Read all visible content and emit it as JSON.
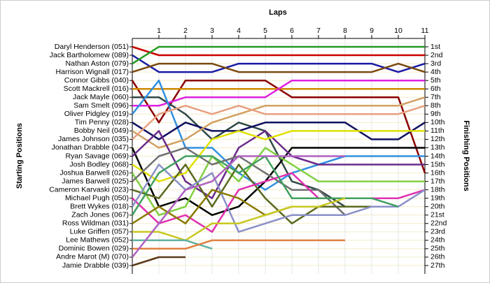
{
  "chart_data": {
    "type": "bump",
    "title": "Laps",
    "y_label": "Starting Positions",
    "y2_label": "Finishing Positions",
    "x": [
      0,
      1,
      2,
      3,
      4,
      5,
      6,
      7,
      8,
      9,
      10,
      11
    ],
    "xlim": [
      0,
      11
    ],
    "xticks": [
      1,
      2,
      3,
      4,
      5,
      6,
      7,
      8,
      9,
      10,
      11
    ],
    "ylim": [
      1,
      27
    ],
    "y_inverted": true,
    "grid": true,
    "y2ticks": [
      {
        "value": 1,
        "label": "1st"
      },
      {
        "value": 2,
        "label": "2nd"
      },
      {
        "value": 3,
        "label": "3rd"
      },
      {
        "value": 4,
        "label": "4th"
      },
      {
        "value": 5,
        "label": "5th"
      },
      {
        "value": 6,
        "label": "6th"
      },
      {
        "value": 7,
        "label": "7th"
      },
      {
        "value": 8,
        "label": "8th"
      },
      {
        "value": 9,
        "label": "9th"
      },
      {
        "value": 10,
        "label": "10th"
      },
      {
        "value": 11,
        "label": "11th"
      },
      {
        "value": 12,
        "label": "12th"
      },
      {
        "value": 13,
        "label": "13th"
      },
      {
        "value": 14,
        "label": "14th"
      },
      {
        "value": 15,
        "label": "15th"
      },
      {
        "value": 16,
        "label": "16th"
      },
      {
        "value": 17,
        "label": "17th"
      },
      {
        "value": 18,
        "label": "18th"
      },
      {
        "value": 19,
        "label": "19th"
      },
      {
        "value": 20,
        "label": "20th"
      },
      {
        "value": 21,
        "label": "21st"
      },
      {
        "value": 22,
        "label": "22nd"
      },
      {
        "value": 23,
        "label": "23rd"
      },
      {
        "value": 24,
        "label": "24th"
      },
      {
        "value": 25,
        "label": "25th"
      },
      {
        "value": 26,
        "label": "26th"
      },
      {
        "value": 27,
        "label": "27th"
      }
    ],
    "series": [
      {
        "name": "Daryl Henderson (051)",
        "color": "#cc0000",
        "values": [
          1,
          2,
          2,
          2,
          2,
          2,
          2,
          2,
          2,
          2,
          2,
          2
        ]
      },
      {
        "name": "Jack Bartholomew (089)",
        "color": "#1a1aa6",
        "values": [
          2,
          4,
          4,
          4,
          3,
          3,
          3,
          3,
          3,
          3,
          4,
          3
        ]
      },
      {
        "name": "Nathan Aston (079)",
        "color": "#229a22",
        "values": [
          3,
          1,
          1,
          1,
          1,
          1,
          1,
          1,
          1,
          1,
          1,
          1
        ]
      },
      {
        "name": "Harrison Wignall (017)",
        "color": "#7a4a10",
        "values": [
          4,
          3,
          3,
          3,
          4,
          4,
          4,
          4,
          4,
          4,
          3,
          4
        ]
      },
      {
        "name": "Connor Gibbs (040)",
        "color": "#8b0000",
        "values": [
          5,
          10,
          5,
          5,
          5,
          5,
          7,
          7,
          7,
          7,
          7,
          16
        ]
      },
      {
        "name": "Scott Mackrell (016)",
        "color": "#d08a00",
        "values": [
          6,
          6,
          6,
          6,
          6,
          6,
          6,
          6,
          6,
          6,
          6,
          6
        ]
      },
      {
        "name": "Jack Mayle (060)",
        "color": "#304848",
        "values": [
          7,
          7,
          9,
          12,
          10,
          11,
          17,
          18,
          20,
          null,
          null,
          null
        ]
      },
      {
        "name": "Sam Smelt (096)",
        "color": "#e020e0",
        "values": [
          8,
          8,
          7,
          7,
          7,
          7,
          5,
          5,
          5,
          5,
          5,
          5
        ]
      },
      {
        "name": "Oliver Pidgley (019)",
        "color": "#3090e0",
        "values": [
          9,
          5,
          13,
          13,
          16,
          18,
          16,
          15,
          14,
          14,
          14,
          14
        ]
      },
      {
        "name": "Tim Penny (028)",
        "color": "#101060",
        "values": [
          10,
          12,
          10,
          11,
          11,
          10,
          10,
          10,
          10,
          12,
          12,
          10
        ]
      },
      {
        "name": "Bobby Neil (049)",
        "color": "#d2a060",
        "values": [
          11,
          13,
          12,
          10,
          9,
          8,
          8,
          8,
          8,
          8,
          8,
          7
        ]
      },
      {
        "name": "James Johnson (035)",
        "color": "#e8a080",
        "values": [
          12,
          9,
          8,
          9,
          8,
          9,
          9,
          9,
          9,
          9,
          9,
          8
        ]
      },
      {
        "name": "Jonathan Drabble (047)",
        "color": "#000000",
        "values": [
          13,
          20,
          19,
          21,
          20,
          17,
          13,
          13,
          13,
          13,
          13,
          13
        ]
      },
      {
        "name": "Ryan Savage (069)",
        "color": "#6a2a8a",
        "values": [
          14,
          11,
          17,
          19,
          13,
          11,
          14,
          15,
          15,
          15,
          15,
          15
        ]
      },
      {
        "name": "Josh Bodley (068)",
        "color": "#e0e000",
        "values": [
          15,
          17,
          16,
          12,
          11,
          12,
          11,
          11,
          11,
          11,
          11,
          11
        ]
      },
      {
        "name": "Joshua Barwell (026)",
        "color": "#80d040",
        "values": [
          16,
          21,
          20,
          14,
          17,
          13,
          15,
          17,
          17,
          17,
          17,
          17
        ]
      },
      {
        "name": "James Barwell (025)",
        "color": "#707070",
        "values": [
          17,
          14,
          13,
          15,
          14,
          16,
          18,
          18,
          21,
          null,
          null,
          null
        ]
      },
      {
        "name": "Cameron Karvaski (023)",
        "color": "#5a6a20",
        "values": [
          18,
          19,
          15,
          20,
          15,
          19,
          22,
          20,
          20,
          20,
          null,
          null
        ]
      },
      {
        "name": "Michael Pugh (050)",
        "color": "#e030b0",
        "values": [
          19,
          22,
          21,
          23,
          18,
          17,
          16,
          19,
          19,
          19,
          19,
          18
        ]
      },
      {
        "name": "Brett Wykes (018)",
        "color": "#8a90c8",
        "values": [
          20,
          15,
          18,
          16,
          23,
          22,
          21,
          21,
          21,
          20,
          20,
          18
        ]
      },
      {
        "name": "Zach Jones (067)",
        "color": "#40a060",
        "values": [
          21,
          16,
          14,
          14,
          16,
          14,
          19,
          19,
          19,
          19,
          20,
          null
        ]
      },
      {
        "name": "Ross Wildman (031)",
        "color": "#8a7a00",
        "values": [
          22,
          20,
          22,
          18,
          19,
          21,
          20,
          20,
          null,
          null,
          null,
          null
        ]
      },
      {
        "name": "Luke Griffen (057)",
        "color": "#c8c820",
        "values": [
          23,
          23,
          24,
          22,
          22,
          21,
          20,
          20,
          19,
          null,
          null,
          null
        ]
      },
      {
        "name": "Lee Mathews (052)",
        "color": "#60b0a0",
        "values": [
          24,
          24,
          24,
          25,
          null,
          null,
          null,
          null,
          null,
          null,
          null,
          null
        ]
      },
      {
        "name": "Dominic Bowen (029)",
        "color": "#e08040",
        "values": [
          25,
          25,
          25,
          24,
          24,
          24,
          24,
          24,
          24,
          null,
          null,
          null
        ]
      },
      {
        "name": "Andre Marot  (M) (070)",
        "color": "#b060c0",
        "values": [
          26,
          22,
          18,
          17,
          14,
          14,
          14,
          14,
          14,
          null,
          null,
          null
        ]
      },
      {
        "name": "Jamie Drabble (039)",
        "color": "#5a3a1a",
        "values": [
          27,
          26,
          26,
          null,
          null,
          null,
          null,
          null,
          null,
          null,
          null,
          null
        ]
      }
    ]
  }
}
